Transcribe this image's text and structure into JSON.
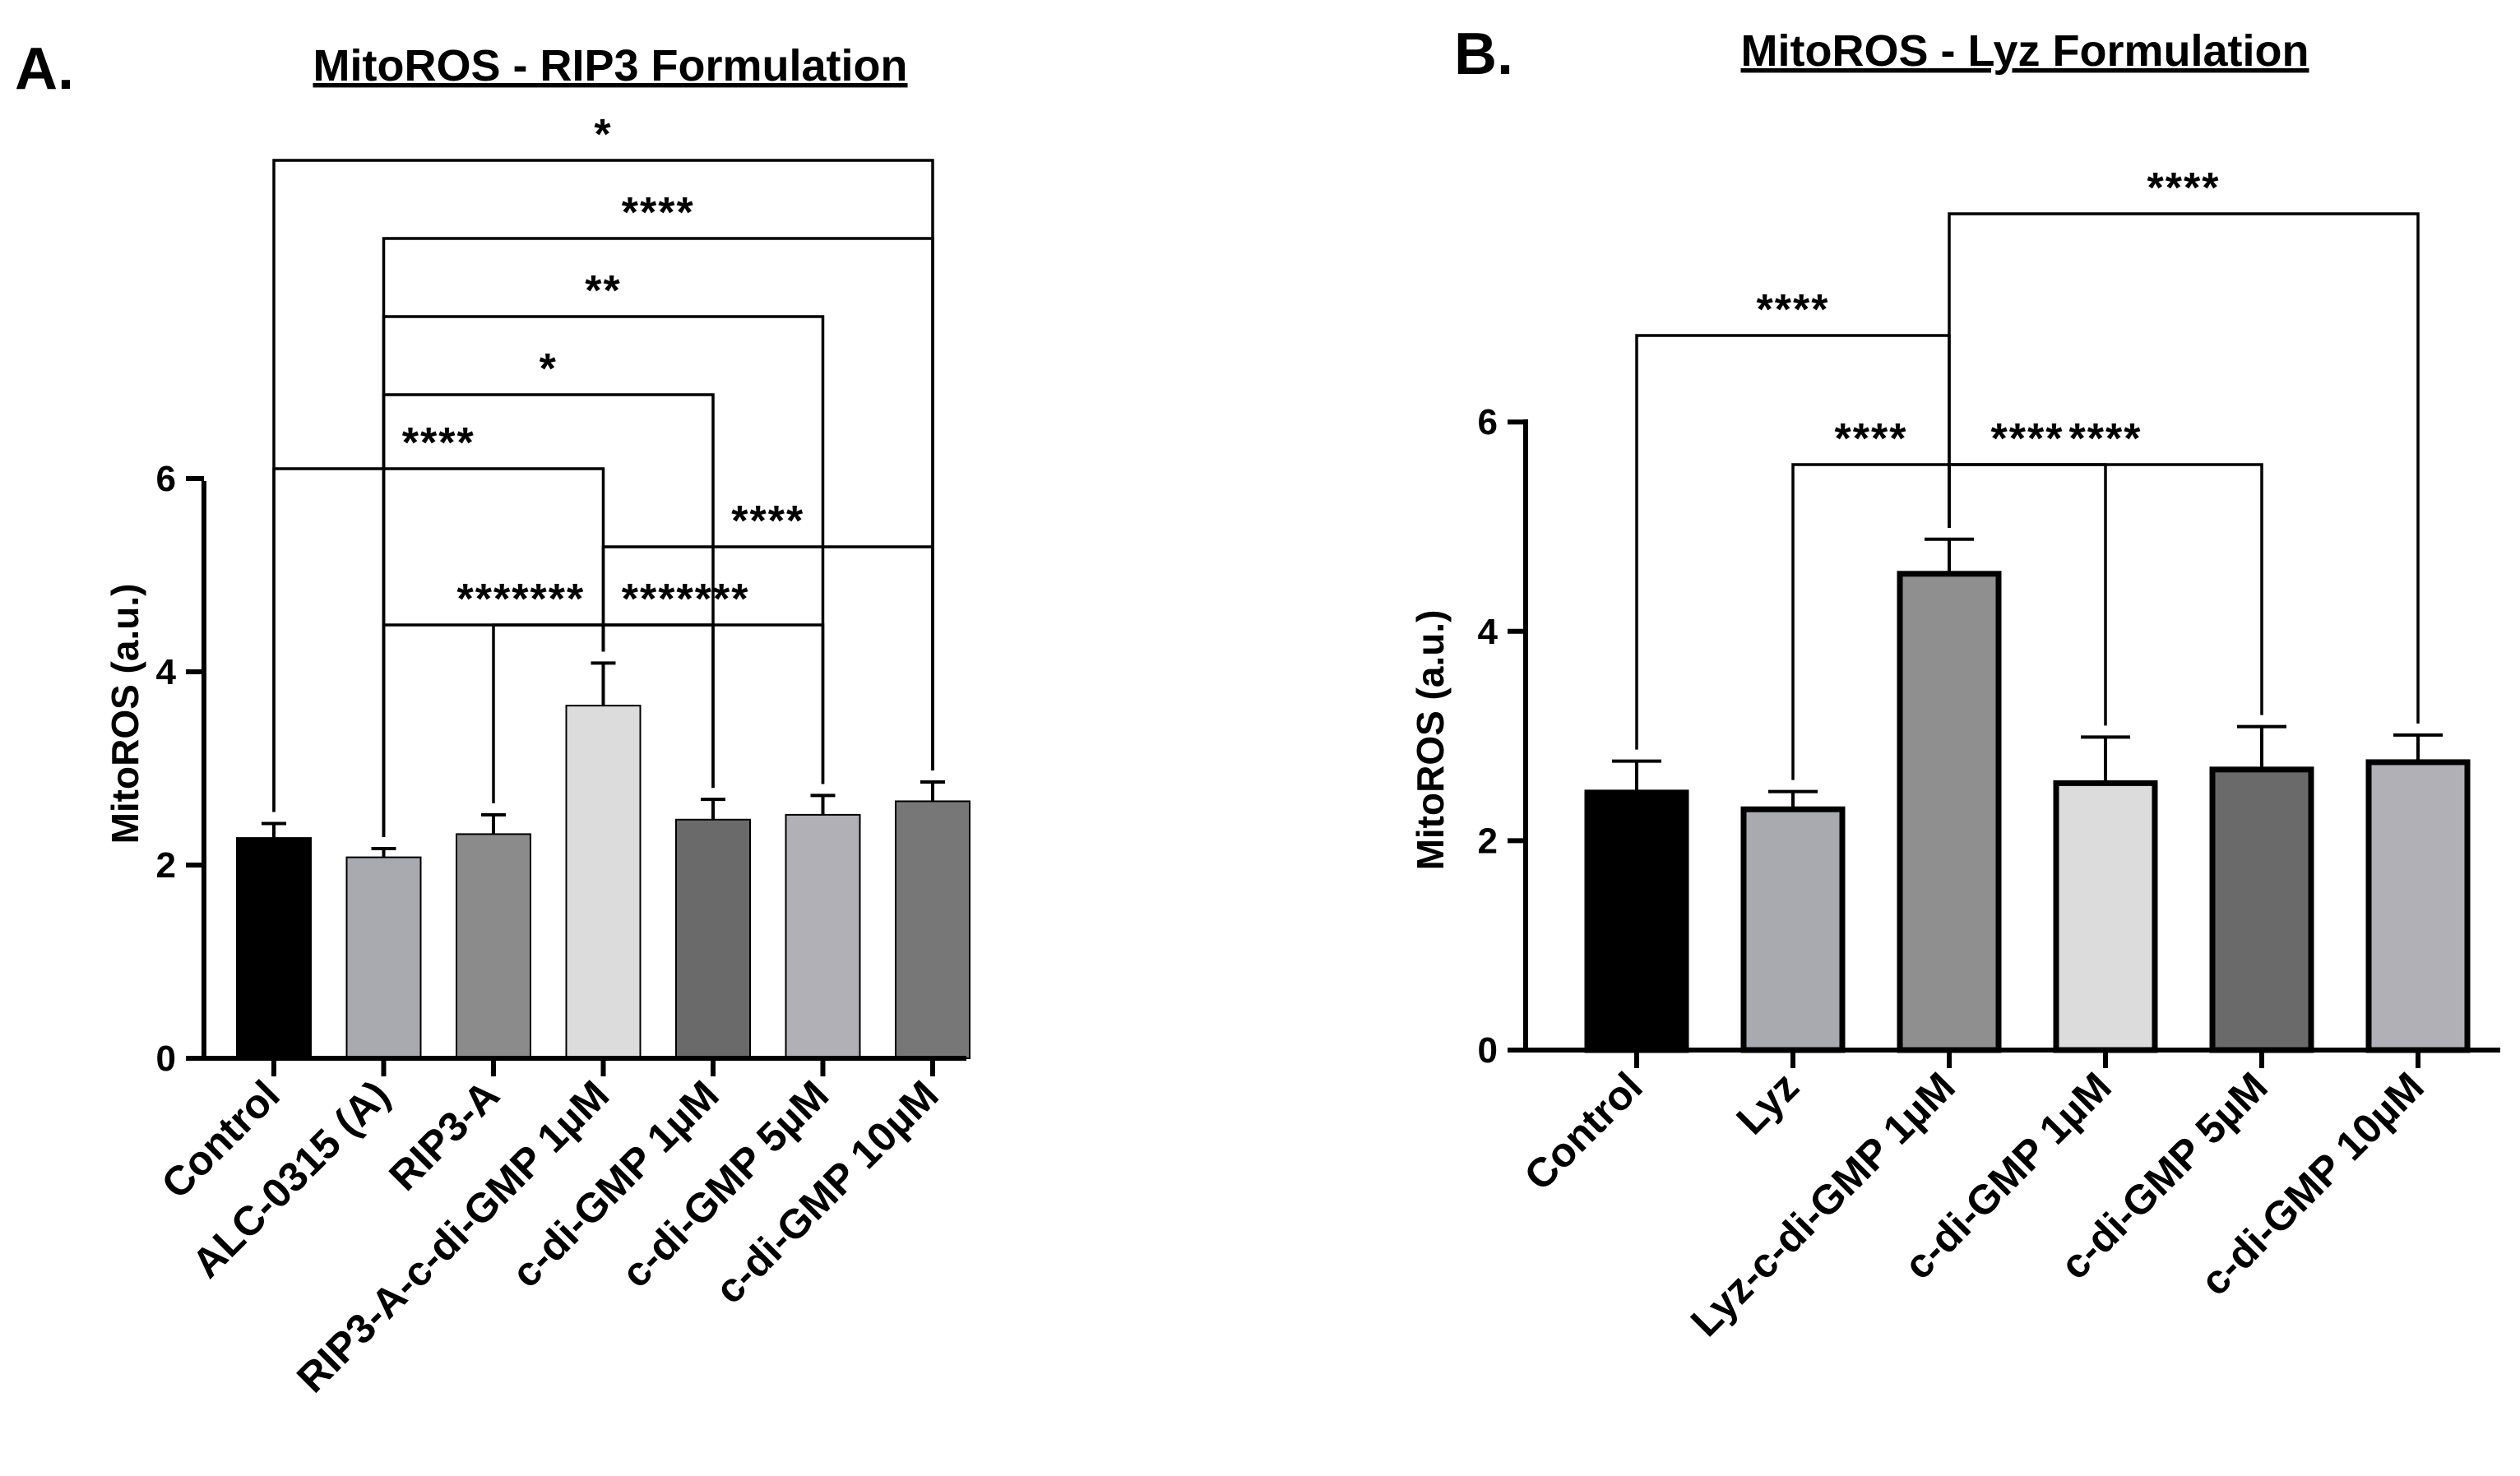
{
  "chart_data": [
    {
      "type": "bar",
      "panel_letter": "A.",
      "title": "MitoROS - RIP3 Formulation",
      "ylabel": "MitoROS (a.u.)",
      "xlabel": "",
      "ylim": [
        0,
        6
      ],
      "yticks": [
        0,
        2,
        4,
        6
      ],
      "categories": [
        "Control",
        "ALC-0315 (A)",
        "RIP3-A",
        "RIP3-A-c-di-GMP  1µM",
        "c-di-GMP 1µM",
        "c-di-GMP 5µM",
        "c-di-GMP 10µM"
      ],
      "values": [
        2.28,
        2.08,
        2.32,
        3.65,
        2.47,
        2.52,
        2.66
      ],
      "errors": [
        0.15,
        0.09,
        0.2,
        0.44,
        0.21,
        0.2,
        0.2
      ],
      "colors": [
        "#000000",
        "#a9a9b0",
        "#8b8b8b",
        "#dcdcdc",
        "#6a6a6a",
        "#b0b0b6",
        "#777777"
      ],
      "comparisons": [
        {
          "from": 0,
          "to": 6,
          "label": "*"
        },
        {
          "from": 1,
          "to": 6,
          "label": "****"
        },
        {
          "from": 1,
          "to": 5,
          "label": "**"
        },
        {
          "from": 1,
          "to": 4,
          "label": "*"
        },
        {
          "from": 0,
          "to": 3,
          "label": "****"
        },
        {
          "from": 3,
          "to": 6,
          "label": "****"
        },
        {
          "from": 1,
          "to": 3,
          "label": "****"
        },
        {
          "from": 3,
          "to": 4,
          "label": "****"
        },
        {
          "from": 2,
          "to": 3,
          "label": "****"
        },
        {
          "from": 3,
          "to": 5,
          "label": "****"
        }
      ]
    },
    {
      "type": "bar",
      "panel_letter": "B.",
      "title": "MitoROS - Lyz Formulation",
      "ylabel": "MitoROS (a.u.)",
      "xlabel": "",
      "ylim": [
        0,
        6
      ],
      "yticks": [
        0,
        2,
        4,
        6
      ],
      "categories": [
        "Control",
        "Lyz",
        "Lyz-c-di-GMP  1µM",
        "c-di-GMP 1µM",
        "c-di-GMP 5µM",
        "c-di-GMP 10µM"
      ],
      "values": [
        2.46,
        2.3,
        4.55,
        2.55,
        2.68,
        2.75
      ],
      "errors": [
        0.3,
        0.17,
        0.33,
        0.44,
        0.41,
        0.26
      ],
      "colors": [
        "#000000",
        "#a9a9b0",
        "#8f8f8f",
        "#dcdcdc",
        "#6a6a6a",
        "#b0b0b6"
      ],
      "comparisons": [
        {
          "from": 2,
          "to": 5,
          "label": "****"
        },
        {
          "from": 0,
          "to": 2,
          "label": "****"
        },
        {
          "from": 2,
          "to": 3,
          "label": "****"
        },
        {
          "from": 1,
          "to": 2,
          "label": "****"
        },
        {
          "from": 2,
          "to": 4,
          "label": "****"
        }
      ]
    }
  ]
}
